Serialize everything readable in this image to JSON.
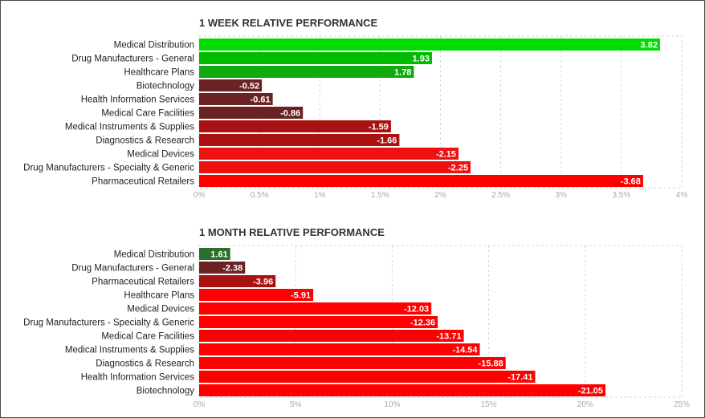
{
  "chart_data": [
    {
      "type": "bar",
      "orientation": "horizontal",
      "title": "1 WEEK RELATIVE PERFORMANCE",
      "categories": [
        "Medical Distribution",
        "Drug Manufacturers - General",
        "Healthcare Plans",
        "Biotechnology",
        "Health Information Services",
        "Medical Care Facilities",
        "Medical Instruments & Supplies",
        "Diagnostics & Research",
        "Medical Devices",
        "Drug Manufacturers - Specialty & Generic",
        "Pharmaceutical Retailers"
      ],
      "values": [
        3.82,
        1.93,
        1.78,
        -0.52,
        -0.61,
        -0.86,
        -1.59,
        -1.66,
        -2.15,
        -2.25,
        -3.68
      ],
      "value_labels": [
        "3.82",
        "1.93",
        "1.78",
        "-0.52",
        "-0.61",
        "-0.86",
        "-1.59",
        "-1.66",
        "-2.15",
        "-2.25",
        "-3.68"
      ],
      "colors": [
        "#00dd00",
        "#00bb00",
        "#11aa11",
        "#6b2222",
        "#6b2222",
        "#6b2222",
        "#aa1111",
        "#aa1111",
        "#ee1111",
        "#ee1111",
        "#ff0000"
      ],
      "xlim": [
        0,
        4
      ],
      "ticks": [
        0,
        0.5,
        1,
        1.5,
        2,
        2.5,
        3,
        3.5,
        4
      ],
      "tick_labels": [
        "0%",
        "0.5%",
        "1%",
        "1.5%",
        "2%",
        "2.5%",
        "3%",
        "3.5%",
        "4%"
      ],
      "bar_length": "absolute value",
      "grid": true
    },
    {
      "type": "bar",
      "orientation": "horizontal",
      "title": "1 MONTH RELATIVE PERFORMANCE",
      "categories": [
        "Medical Distribution",
        "Drug Manufacturers - General",
        "Pharmaceutical Retailers",
        "Healthcare Plans",
        "Medical Devices",
        "Drug Manufacturers - Specialty & Generic",
        "Medical Care Facilities",
        "Medical Instruments & Supplies",
        "Diagnostics & Research",
        "Health Information Services",
        "Biotechnology"
      ],
      "values": [
        1.61,
        -2.38,
        -3.96,
        -5.91,
        -12.03,
        -12.36,
        -13.71,
        -14.54,
        -15.88,
        -17.41,
        -21.05
      ],
      "value_labels": [
        "1.61",
        "-2.38",
        "-3.96",
        "-5.91",
        "-12.03",
        "-12.36",
        "-13.71",
        "-14.54",
        "-15.88",
        "-17.41",
        "-21.05"
      ],
      "colors": [
        "#2a6e2a",
        "#6b2222",
        "#aa1111",
        "#ff0000",
        "#ff0000",
        "#ff0000",
        "#ff0000",
        "#ff0000",
        "#ff0000",
        "#ff0000",
        "#ff0000"
      ],
      "xlim": [
        0,
        25
      ],
      "ticks": [
        0,
        5,
        10,
        15,
        20,
        25
      ],
      "tick_labels": [
        "0%",
        "5%",
        "10%",
        "15%",
        "20%",
        "25%"
      ],
      "bar_length": "absolute value",
      "grid": true
    }
  ]
}
